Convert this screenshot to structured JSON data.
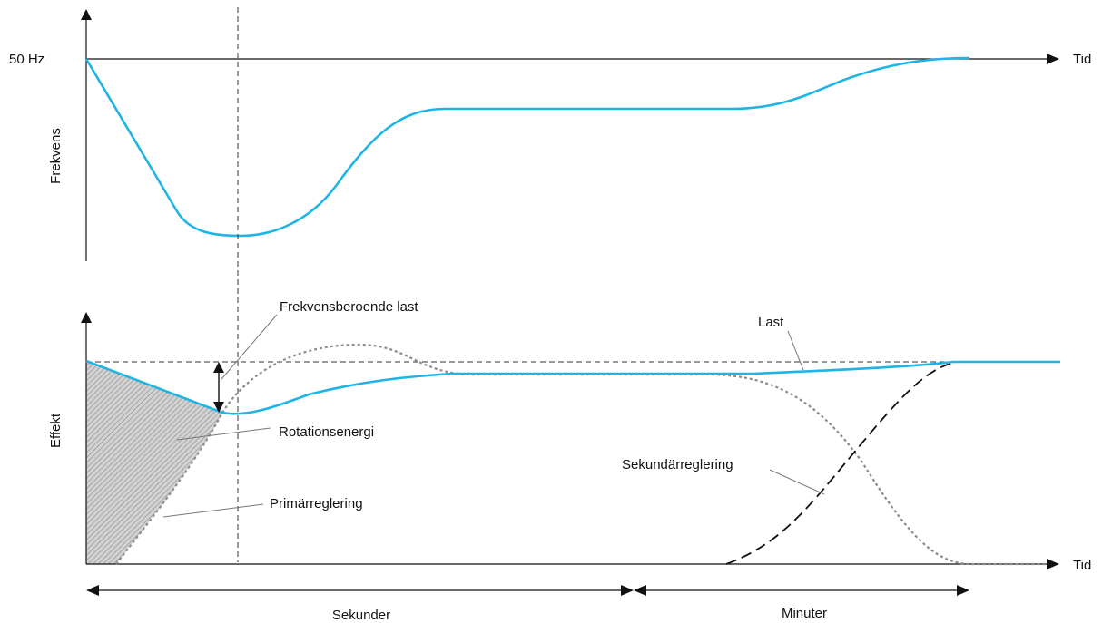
{
  "top_chart": {
    "y_axis_label": "Frekvens",
    "reference_label": "50 Hz",
    "x_axis_label": "Tid"
  },
  "bottom_chart": {
    "y_axis_label": "Effekt",
    "x_axis_label": "Tid"
  },
  "annotations": {
    "frequency_dependent_load": "Frekvensberoende last",
    "load": "Last",
    "rotation_energy": "Rotationsenergi",
    "primary_regulation": "Primärreglering",
    "secondary_regulation": "Sekundärreglering"
  },
  "time_scale": {
    "seconds": "Sekunder",
    "minutes": "Minuter"
  },
  "colors": {
    "frequency_curve": "#1fb4e6",
    "load_curve": "#1fb4e6",
    "primary_regulation": "#8c8c8c",
    "secondary_regulation": "#111111",
    "rotation_energy_fill": "#c8c8c8"
  }
}
